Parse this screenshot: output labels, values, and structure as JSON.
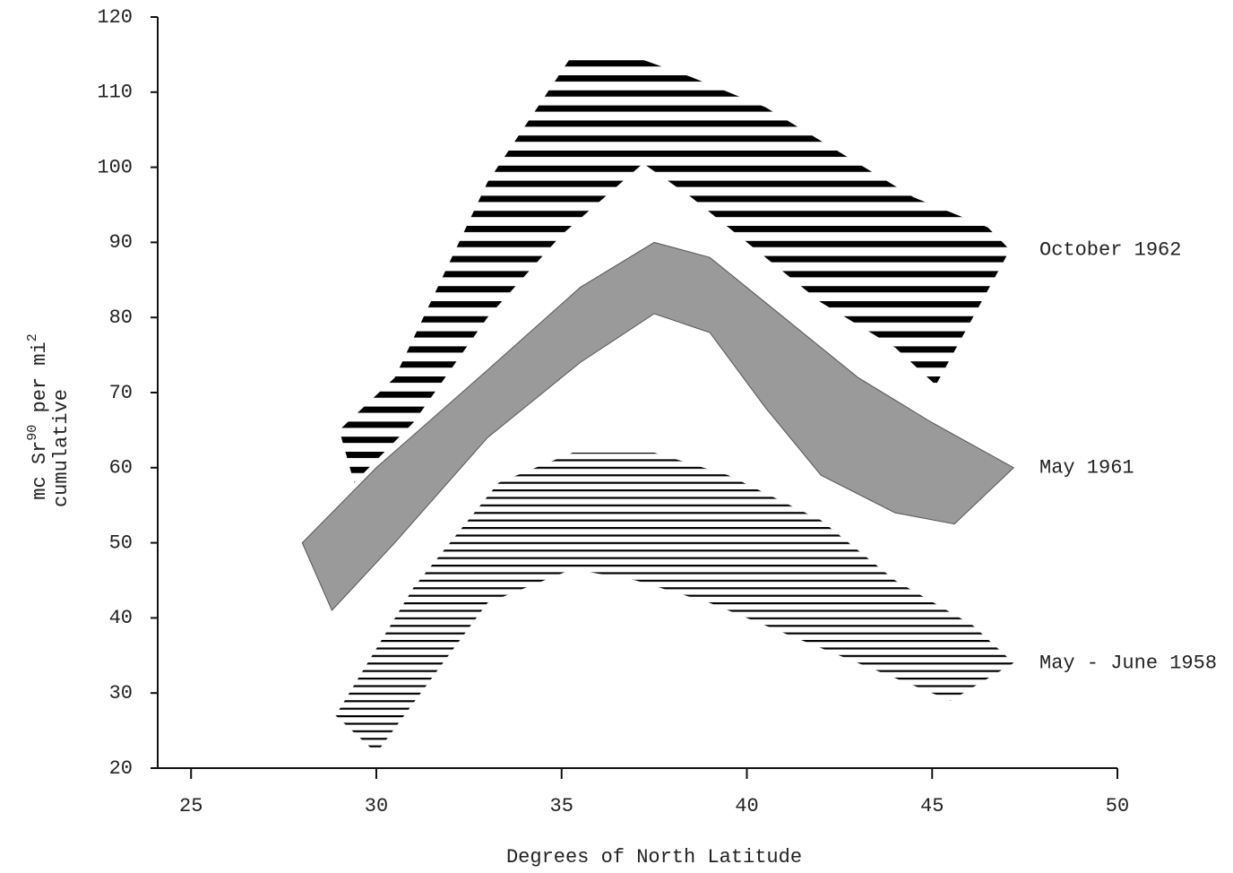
{
  "chart_data": {
    "type": "range-area",
    "xlabel": "Degrees of North Latitude",
    "ylabel_parts": [
      "mc Sr",
      "90",
      " per mi",
      "2"
    ],
    "ylabel_line2": "cumulative",
    "xlim": [
      24.1,
      50
    ],
    "xticks": [
      25,
      30,
      35,
      40,
      45,
      50
    ],
    "ylim": [
      20,
      120
    ],
    "yticks": [
      20,
      30,
      40,
      50,
      60,
      70,
      80,
      90,
      100,
      110,
      120
    ],
    "series": [
      {
        "name": "October 1962",
        "color": "#111111",
        "pattern": "thick-hatch",
        "upper": {
          "x": [
            29.0,
            30.5,
            33.0,
            35.3,
            36.8,
            38.5,
            40.5,
            42.5,
            44.5,
            46.5,
            47.1
          ],
          "y": [
            65,
            72,
            98,
            115,
            115,
            112,
            108,
            102,
            96,
            92,
            89
          ]
        },
        "lower": {
          "x": [
            29.4,
            31,
            33,
            35,
            37.2,
            38.5,
            40,
            42,
            44,
            45.1
          ],
          "y": [
            58,
            66,
            80,
            91,
            100.5,
            96,
            90,
            82,
            76,
            71
          ]
        }
      },
      {
        "name": "May 1961",
        "color": "#9a9a9a",
        "pattern": "solid",
        "upper": {
          "x": [
            28,
            30,
            33,
            35.5,
            37.5,
            39,
            41,
            43,
            45,
            47.2
          ],
          "y": [
            50,
            60,
            73,
            84,
            90,
            88,
            80,
            72,
            66,
            60
          ]
        },
        "lower": {
          "x": [
            28.8,
            30.5,
            33,
            35.5,
            37.5,
            39,
            40.5,
            42,
            44,
            45.6
          ],
          "y": [
            41,
            50,
            64,
            74,
            80.5,
            78,
            68,
            59,
            54,
            52.5
          ]
        }
      },
      {
        "name": "May - June 1958",
        "color": "#222222",
        "pattern": "thin-hatch",
        "upper": {
          "x": [
            28.9,
            31,
            33.3,
            35.3,
            37.5,
            39.5,
            42,
            44,
            46.1,
            47.2
          ],
          "y": [
            27,
            44,
            58,
            62,
            62,
            59,
            53,
            45,
            39,
            34
          ]
        },
        "lower": {
          "x": [
            30,
            31.5,
            33,
            35.3,
            37,
            39,
            41,
            43,
            45.5
          ],
          "y": [
            22,
            32,
            42,
            46.5,
            45,
            42,
            38,
            34,
            29
          ]
        }
      }
    ]
  }
}
